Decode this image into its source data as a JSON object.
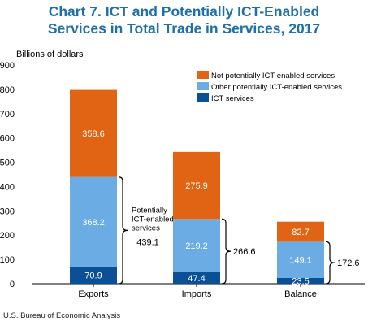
{
  "chart_data": {
    "type": "bar",
    "stacked": true,
    "title_line1": "Chart 7. ICT and Potentially ICT-Enabled",
    "title_line2": "Services in Total Trade in Services, 2017",
    "ylabel": "Billions of dollars",
    "ylim": [
      0,
      900
    ],
    "yticks": [
      "900",
      "800",
      "700",
      "600",
      "500",
      "400",
      "300",
      "200",
      "100",
      "0"
    ],
    "categories": [
      "Exports",
      "Imports",
      "Balance"
    ],
    "series": [
      {
        "name": "ICT services",
        "color": "#0b4f95",
        "values": [
          70.9,
          47.4,
          23.5
        ],
        "labels": [
          "70.9",
          "47.4",
          "23.5"
        ]
      },
      {
        "name": "Other potentially ICT-enabled services",
        "color": "#6cace4",
        "values": [
          368.2,
          219.2,
          149.1
        ],
        "labels": [
          "368.2",
          "219.2",
          "149.1"
        ]
      },
      {
        "name": "Not potentially ICT-enabled services",
        "color": "#e06414",
        "values": [
          358.6,
          275.9,
          82.7
        ],
        "labels": [
          "358.6",
          "275.9",
          "82.7"
        ]
      }
    ],
    "legend_order": [
      2,
      1,
      0
    ],
    "legend_position": "top-right",
    "brace_annotations": [
      {
        "category": "Exports",
        "lines": [
          "Potentially",
          "ICT-enabled",
          "services"
        ],
        "total": "439.1"
      },
      {
        "category": "Imports",
        "lines": [],
        "total": "266.6"
      },
      {
        "category": "Balance",
        "lines": [],
        "total": "172.6"
      }
    ],
    "grid": false
  },
  "source": "U.S. Bureau of Economic Analysis"
}
